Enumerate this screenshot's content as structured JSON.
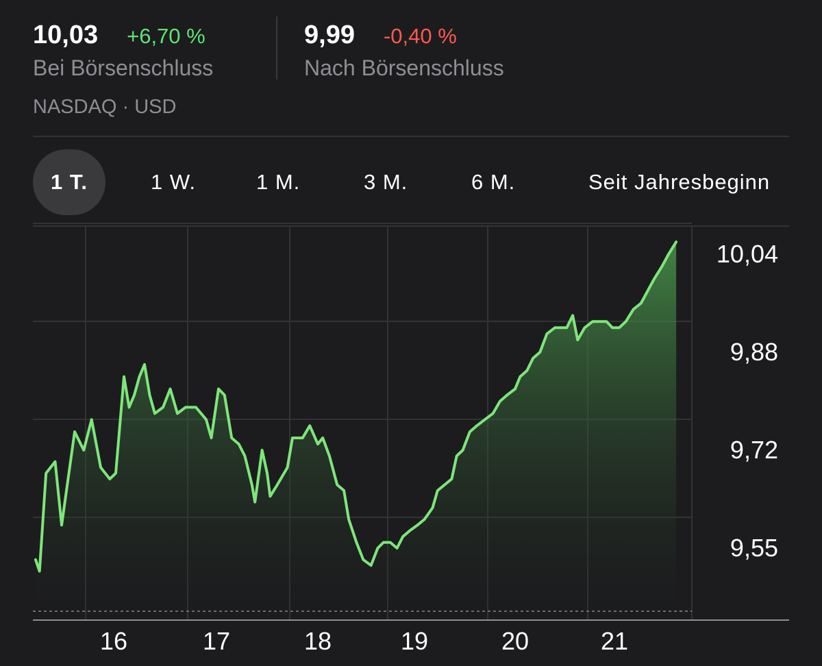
{
  "quote": {
    "close": {
      "price": "10,03",
      "change": "+6,70 %",
      "label": "Bei Börsenschluss"
    },
    "after_hours": {
      "price": "9,99",
      "change": "-0,40 %",
      "label": "Nach Börsenschluss"
    },
    "exchange": "NASDAQ · USD"
  },
  "range_tabs": [
    {
      "label": "1 T.",
      "selected": true
    },
    {
      "label": "1 W.",
      "selected": false
    },
    {
      "label": "1 M.",
      "selected": false
    },
    {
      "label": "3 M.",
      "selected": false
    },
    {
      "label": "6 M.",
      "selected": false
    },
    {
      "label": "Seit Jahresbeginn",
      "selected": false
    }
  ],
  "colors": {
    "background": "#1c1c1e",
    "line": "#7ee67a",
    "positive": "#5ee370",
    "negative": "#ff5a4e",
    "muted": "#8e8e93"
  },
  "chart_data": {
    "type": "area",
    "title": "",
    "xlabel": "",
    "ylabel": "",
    "x_ticks": [
      "16",
      "17",
      "18",
      "19",
      "20",
      "21"
    ],
    "y_ticks": [
      "9,55",
      "9,72",
      "9,88",
      "10,04"
    ],
    "y_tick_values": [
      9.55,
      9.72,
      9.88,
      10.04
    ],
    "x_range": [
      15.4,
      21.75
    ],
    "ylim": [
      9.47,
      10.07
    ],
    "grid": true,
    "series": [
      {
        "points": [
          [
            15.4,
            9.53
          ],
          [
            15.43,
            9.51
          ],
          [
            15.48,
            9.68
          ],
          [
            15.55,
            9.7
          ],
          [
            15.6,
            9.59
          ],
          [
            15.7,
            9.75
          ],
          [
            15.77,
            9.72
          ],
          [
            15.83,
            9.77
          ],
          [
            15.9,
            9.69
          ],
          [
            15.97,
            9.67
          ],
          [
            16.02,
            9.68
          ],
          [
            16.1,
            9.84
          ],
          [
            16.15,
            9.79
          ],
          [
            16.2,
            9.81
          ],
          [
            16.25,
            9.84
          ],
          [
            16.3,
            9.86
          ],
          [
            16.35,
            9.81
          ],
          [
            16.4,
            9.78
          ],
          [
            16.48,
            9.79
          ],
          [
            16.55,
            9.82
          ],
          [
            16.62,
            9.78
          ],
          [
            16.7,
            9.79
          ],
          [
            16.8,
            9.79
          ],
          [
            16.9,
            9.77
          ],
          [
            16.95,
            9.74
          ],
          [
            17.02,
            9.82
          ],
          [
            17.08,
            9.81
          ],
          [
            17.15,
            9.74
          ],
          [
            17.22,
            9.73
          ],
          [
            17.28,
            9.71
          ],
          [
            17.35,
            9.66
          ],
          [
            17.38,
            9.63
          ],
          [
            17.45,
            9.72
          ],
          [
            17.5,
            9.68
          ],
          [
            17.53,
            9.64
          ],
          [
            17.6,
            9.66
          ],
          [
            17.7,
            9.69
          ],
          [
            17.75,
            9.74
          ],
          [
            17.85,
            9.74
          ],
          [
            17.92,
            9.76
          ],
          [
            18.0,
            9.73
          ],
          [
            18.05,
            9.74
          ],
          [
            18.12,
            9.71
          ],
          [
            18.2,
            9.66
          ],
          [
            18.27,
            9.65
          ],
          [
            18.32,
            9.6
          ],
          [
            18.4,
            9.56
          ],
          [
            18.47,
            9.53
          ],
          [
            18.55,
            9.52
          ],
          [
            18.62,
            9.55
          ],
          [
            18.68,
            9.56
          ],
          [
            18.75,
            9.56
          ],
          [
            18.82,
            9.55
          ],
          [
            18.88,
            9.57
          ],
          [
            18.95,
            9.58
          ],
          [
            19.03,
            9.59
          ],
          [
            19.1,
            9.6
          ],
          [
            19.18,
            9.62
          ],
          [
            19.23,
            9.65
          ],
          [
            19.3,
            9.66
          ],
          [
            19.37,
            9.67
          ],
          [
            19.42,
            9.71
          ],
          [
            19.48,
            9.72
          ],
          [
            19.55,
            9.75
          ],
          [
            19.62,
            9.76
          ],
          [
            19.7,
            9.77
          ],
          [
            19.78,
            9.78
          ],
          [
            19.85,
            9.8
          ],
          [
            19.92,
            9.81
          ],
          [
            20.0,
            9.82
          ],
          [
            20.05,
            9.84
          ],
          [
            20.12,
            9.85
          ],
          [
            20.18,
            9.87
          ],
          [
            20.25,
            9.88
          ],
          [
            20.32,
            9.91
          ],
          [
            20.4,
            9.92
          ],
          [
            20.47,
            9.92
          ],
          [
            20.52,
            9.92
          ],
          [
            20.58,
            9.94
          ],
          [
            20.63,
            9.9
          ],
          [
            20.7,
            9.92
          ],
          [
            20.78,
            9.93
          ],
          [
            20.85,
            9.93
          ],
          [
            20.92,
            9.93
          ],
          [
            20.98,
            9.92
          ],
          [
            21.05,
            9.92
          ],
          [
            21.12,
            9.93
          ],
          [
            21.2,
            9.95
          ],
          [
            21.28,
            9.96
          ],
          [
            21.35,
            9.98
          ],
          [
            21.42,
            10.0
          ],
          [
            21.5,
            10.02
          ],
          [
            21.57,
            10.04
          ],
          [
            21.65,
            10.06
          ]
        ]
      }
    ]
  }
}
